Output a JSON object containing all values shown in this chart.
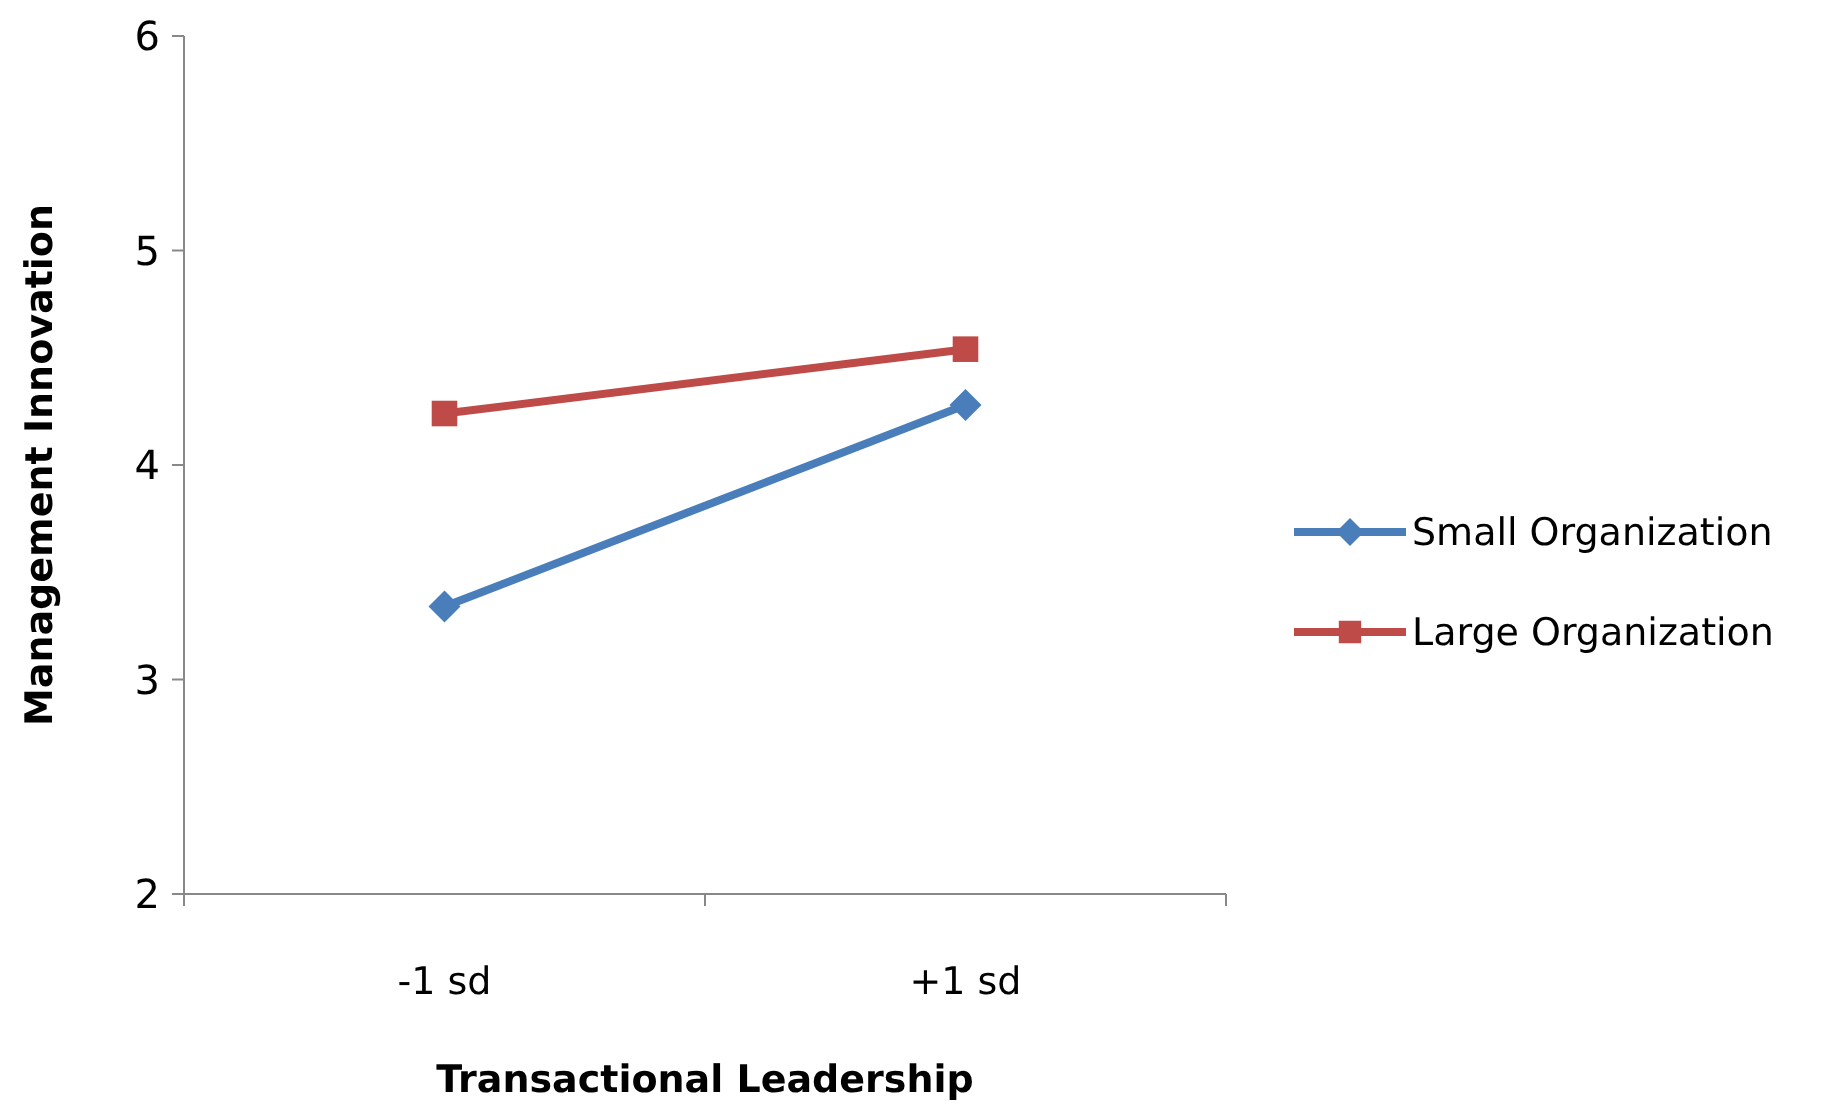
{
  "chart_data": {
    "type": "line",
    "xlabel": "Transactional Leadership",
    "ylabel": "Management Innovation",
    "categories": [
      "-1 sd",
      "+1 sd"
    ],
    "series": [
      {
        "name": "Small Organization",
        "color": "#4a7ebb",
        "values": [
          3.34,
          4.28
        ],
        "marker": "diamond"
      },
      {
        "name": "Large Organization",
        "color": "#be4b48",
        "values": [
          4.24,
          4.54
        ],
        "marker": "square"
      }
    ],
    "ylim": [
      2,
      6
    ],
    "yticks": [
      2,
      3,
      4,
      5,
      6
    ],
    "grid": false,
    "legend": "right"
  }
}
